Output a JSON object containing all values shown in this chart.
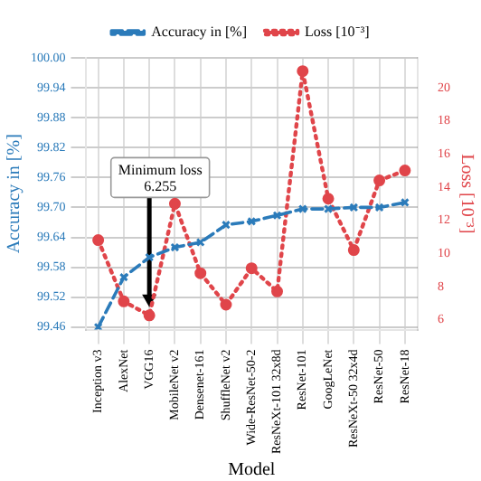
{
  "chart_data": {
    "type": "line",
    "xlabel": "Model",
    "ylabel": "Accuracy in [%]",
    "y2label": "Loss [10⁻³]",
    "categories": [
      "Inception v3",
      "AlexNet",
      "VGG16",
      "MobileNet v2",
      "Densenet-161",
      "ShuffleNet v2",
      "Wide-ResNet-50-2",
      "ResNeXt-101 32x8d",
      "ResNet-101",
      "GoogLeNet",
      "ResNeXt-50 32x4d",
      "ResNet-50",
      "ResNet-18"
    ],
    "series": [
      {
        "name": "Accuracy in [%]",
        "color": "#2b7bba",
        "marker": "cross",
        "line_style": "dashed",
        "values": [
          99.46,
          99.56,
          99.6,
          99.62,
          99.63,
          99.665,
          99.672,
          99.684,
          99.697,
          99.697,
          99.7,
          99.7,
          99.71
        ]
      },
      {
        "name": "Loss [10⁻³]",
        "color": "#e0454a",
        "marker": "circle",
        "line_style": "dotted",
        "axis": "y2",
        "values": [
          10.8,
          7.1,
          6.255,
          13.0,
          8.8,
          6.9,
          9.1,
          7.7,
          21.0,
          13.3,
          10.2,
          14.4,
          15.0
        ]
      }
    ],
    "ylim": [
      99.455,
      100.0
    ],
    "yticks": [
      99.46,
      99.52,
      99.58,
      99.64,
      {
        "value": 99.7,
        "label": "99.70"
      },
      99.76,
      99.82,
      99.88,
      99.94,
      {
        "value": 100,
        "label": "100.00"
      }
    ],
    "y2lim": [
      5.4,
      21.8
    ],
    "y2ticks": [
      6,
      8,
      10,
      12,
      14,
      16,
      18,
      20
    ],
    "annotations": [
      {
        "text": "Minimum loss\n6.255",
        "x": "VGG16",
        "y": 99.5
      }
    ],
    "grid": true,
    "legend": "top"
  }
}
